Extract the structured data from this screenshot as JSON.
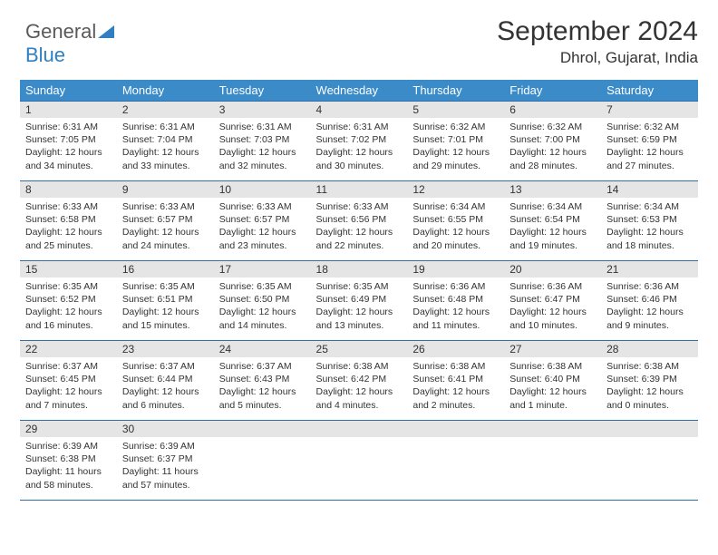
{
  "logo": {
    "text1": "General",
    "text2": "Blue"
  },
  "header": {
    "month": "September 2024",
    "location": "Dhrol, Gujarat, India"
  },
  "colors": {
    "header_bg": "#3b8bc9",
    "header_text": "#ffffff",
    "border": "#2f6ea8",
    "daynum_bg": "#e5e5e5",
    "text": "#333333",
    "logo_gray": "#5a5a5a",
    "logo_blue": "#2f7fc2"
  },
  "weekdays": [
    "Sunday",
    "Monday",
    "Tuesday",
    "Wednesday",
    "Thursday",
    "Friday",
    "Saturday"
  ],
  "weeks": [
    [
      {
        "num": "1",
        "sunrise": "Sunrise: 6:31 AM",
        "sunset": "Sunset: 7:05 PM",
        "daylight": "Daylight: 12 hours and 34 minutes."
      },
      {
        "num": "2",
        "sunrise": "Sunrise: 6:31 AM",
        "sunset": "Sunset: 7:04 PM",
        "daylight": "Daylight: 12 hours and 33 minutes."
      },
      {
        "num": "3",
        "sunrise": "Sunrise: 6:31 AM",
        "sunset": "Sunset: 7:03 PM",
        "daylight": "Daylight: 12 hours and 32 minutes."
      },
      {
        "num": "4",
        "sunrise": "Sunrise: 6:31 AM",
        "sunset": "Sunset: 7:02 PM",
        "daylight": "Daylight: 12 hours and 30 minutes."
      },
      {
        "num": "5",
        "sunrise": "Sunrise: 6:32 AM",
        "sunset": "Sunset: 7:01 PM",
        "daylight": "Daylight: 12 hours and 29 minutes."
      },
      {
        "num": "6",
        "sunrise": "Sunrise: 6:32 AM",
        "sunset": "Sunset: 7:00 PM",
        "daylight": "Daylight: 12 hours and 28 minutes."
      },
      {
        "num": "7",
        "sunrise": "Sunrise: 6:32 AM",
        "sunset": "Sunset: 6:59 PM",
        "daylight": "Daylight: 12 hours and 27 minutes."
      }
    ],
    [
      {
        "num": "8",
        "sunrise": "Sunrise: 6:33 AM",
        "sunset": "Sunset: 6:58 PM",
        "daylight": "Daylight: 12 hours and 25 minutes."
      },
      {
        "num": "9",
        "sunrise": "Sunrise: 6:33 AM",
        "sunset": "Sunset: 6:57 PM",
        "daylight": "Daylight: 12 hours and 24 minutes."
      },
      {
        "num": "10",
        "sunrise": "Sunrise: 6:33 AM",
        "sunset": "Sunset: 6:57 PM",
        "daylight": "Daylight: 12 hours and 23 minutes."
      },
      {
        "num": "11",
        "sunrise": "Sunrise: 6:33 AM",
        "sunset": "Sunset: 6:56 PM",
        "daylight": "Daylight: 12 hours and 22 minutes."
      },
      {
        "num": "12",
        "sunrise": "Sunrise: 6:34 AM",
        "sunset": "Sunset: 6:55 PM",
        "daylight": "Daylight: 12 hours and 20 minutes."
      },
      {
        "num": "13",
        "sunrise": "Sunrise: 6:34 AM",
        "sunset": "Sunset: 6:54 PM",
        "daylight": "Daylight: 12 hours and 19 minutes."
      },
      {
        "num": "14",
        "sunrise": "Sunrise: 6:34 AM",
        "sunset": "Sunset: 6:53 PM",
        "daylight": "Daylight: 12 hours and 18 minutes."
      }
    ],
    [
      {
        "num": "15",
        "sunrise": "Sunrise: 6:35 AM",
        "sunset": "Sunset: 6:52 PM",
        "daylight": "Daylight: 12 hours and 16 minutes."
      },
      {
        "num": "16",
        "sunrise": "Sunrise: 6:35 AM",
        "sunset": "Sunset: 6:51 PM",
        "daylight": "Daylight: 12 hours and 15 minutes."
      },
      {
        "num": "17",
        "sunrise": "Sunrise: 6:35 AM",
        "sunset": "Sunset: 6:50 PM",
        "daylight": "Daylight: 12 hours and 14 minutes."
      },
      {
        "num": "18",
        "sunrise": "Sunrise: 6:35 AM",
        "sunset": "Sunset: 6:49 PM",
        "daylight": "Daylight: 12 hours and 13 minutes."
      },
      {
        "num": "19",
        "sunrise": "Sunrise: 6:36 AM",
        "sunset": "Sunset: 6:48 PM",
        "daylight": "Daylight: 12 hours and 11 minutes."
      },
      {
        "num": "20",
        "sunrise": "Sunrise: 6:36 AM",
        "sunset": "Sunset: 6:47 PM",
        "daylight": "Daylight: 12 hours and 10 minutes."
      },
      {
        "num": "21",
        "sunrise": "Sunrise: 6:36 AM",
        "sunset": "Sunset: 6:46 PM",
        "daylight": "Daylight: 12 hours and 9 minutes."
      }
    ],
    [
      {
        "num": "22",
        "sunrise": "Sunrise: 6:37 AM",
        "sunset": "Sunset: 6:45 PM",
        "daylight": "Daylight: 12 hours and 7 minutes."
      },
      {
        "num": "23",
        "sunrise": "Sunrise: 6:37 AM",
        "sunset": "Sunset: 6:44 PM",
        "daylight": "Daylight: 12 hours and 6 minutes."
      },
      {
        "num": "24",
        "sunrise": "Sunrise: 6:37 AM",
        "sunset": "Sunset: 6:43 PM",
        "daylight": "Daylight: 12 hours and 5 minutes."
      },
      {
        "num": "25",
        "sunrise": "Sunrise: 6:38 AM",
        "sunset": "Sunset: 6:42 PM",
        "daylight": "Daylight: 12 hours and 4 minutes."
      },
      {
        "num": "26",
        "sunrise": "Sunrise: 6:38 AM",
        "sunset": "Sunset: 6:41 PM",
        "daylight": "Daylight: 12 hours and 2 minutes."
      },
      {
        "num": "27",
        "sunrise": "Sunrise: 6:38 AM",
        "sunset": "Sunset: 6:40 PM",
        "daylight": "Daylight: 12 hours and 1 minute."
      },
      {
        "num": "28",
        "sunrise": "Sunrise: 6:38 AM",
        "sunset": "Sunset: 6:39 PM",
        "daylight": "Daylight: 12 hours and 0 minutes."
      }
    ],
    [
      {
        "num": "29",
        "sunrise": "Sunrise: 6:39 AM",
        "sunset": "Sunset: 6:38 PM",
        "daylight": "Daylight: 11 hours and 58 minutes."
      },
      {
        "num": "30",
        "sunrise": "Sunrise: 6:39 AM",
        "sunset": "Sunset: 6:37 PM",
        "daylight": "Daylight: 11 hours and 57 minutes."
      },
      null,
      null,
      null,
      null,
      null
    ]
  ]
}
